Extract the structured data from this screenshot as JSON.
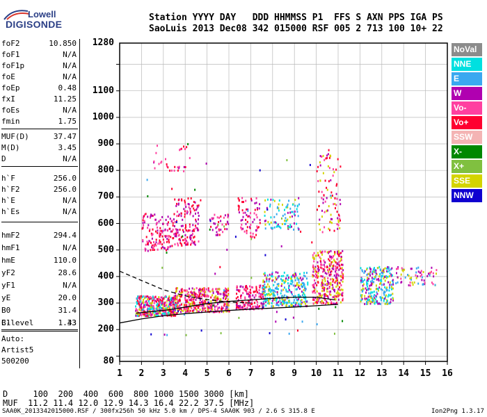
{
  "logo": {
    "line1": "Lowell",
    "line2": "DIGISONDE"
  },
  "header": {
    "labels": "Station YYYY DAY   DDD HHMMSS P1  FFS S AXN PPS IGA PS",
    "values": "SaoLuis 2013 Dec08 342 015000 RSF 005 2 713 100 10+ 22"
  },
  "params": {
    "group1": [
      {
        "k": "foF2",
        "v": "10.850"
      },
      {
        "k": "foF1",
        "v": "N/A"
      },
      {
        "k": "foF1p",
        "v": "N/A"
      },
      {
        "k": "foE",
        "v": "N/A"
      },
      {
        "k": "foEp",
        "v": "0.48"
      },
      {
        "k": "fxI",
        "v": "11.25"
      },
      {
        "k": "foEs",
        "v": "N/A"
      },
      {
        "k": "fmin",
        "v": "1.75"
      }
    ],
    "group2": [
      {
        "k": "MUF(D)",
        "v": "37.47"
      },
      {
        "k": "M(D)",
        "v": "3.45"
      },
      {
        "k": "D",
        "v": "N/A"
      }
    ],
    "group3": [
      {
        "k": "h`F",
        "v": "256.0"
      },
      {
        "k": "h`F2",
        "v": "256.0"
      },
      {
        "k": "h`E",
        "v": "N/A"
      },
      {
        "k": "h`Es",
        "v": "N/A"
      }
    ],
    "group4": [
      {
        "k": "hmF2",
        "v": "294.4"
      },
      {
        "k": "hmF1",
        "v": "N/A"
      },
      {
        "k": "hmE",
        "v": "110.0"
      },
      {
        "k": "yF2",
        "v": "28.6"
      },
      {
        "k": "yF1",
        "v": "N/A"
      },
      {
        "k": "yE",
        "v": "20.0"
      },
      {
        "k": "B0",
        "v": "31.4"
      },
      {
        "k": "B1",
        "v": "1.43"
      }
    ],
    "group5": [
      {
        "k": "C-level",
        "v": "33"
      }
    ],
    "auto_label": "Auto:",
    "auto_name": "Artist5",
    "auto_code": "500200"
  },
  "legend": [
    {
      "label": "NoVal",
      "color": "#8c8c8c"
    },
    {
      "label": "NNE",
      "color": "#00e0e0"
    },
    {
      "label": "E",
      "color": "#3aa8f0"
    },
    {
      "label": "W",
      "color": "#b000b0"
    },
    {
      "label": "Vo-",
      "color": "#ff40a0"
    },
    {
      "label": "Vo+",
      "color": "#ff0030"
    },
    {
      "label": "SSW",
      "color": "#f4b4b4"
    },
    {
      "label": "X-",
      "color": "#008800"
    },
    {
      "label": "X+",
      "color": "#80c040"
    },
    {
      "label": "SSE",
      "color": "#d4d400"
    },
    {
      "label": "NNW",
      "color": "#1000d0"
    }
  ],
  "bottom": {
    "d_line": "D     100  200  400  600  800 1000 1500 3000 [km]",
    "muf_line": "MUF  11.2 11.4 12.0 12.9 14.3 16.4 22.2 37.5 [MHz]",
    "footer_left": "SAA0K_2013342015000.RSF / 300fx256h 50 kHz 5.0 km / DPS-4 SAA0K 903 / 2.6 S 315.8 E",
    "footer_right": "Ion2Png 1.3.17"
  },
  "chart_data": {
    "type": "scatter",
    "xlabel": "",
    "ylabel": "",
    "xlim": [
      1,
      16
    ],
    "ylim": [
      80,
      1280
    ],
    "x_ticks": [
      1,
      2,
      3,
      4,
      5,
      6,
      7,
      8,
      9,
      10,
      11,
      12,
      13,
      14,
      15,
      16
    ],
    "y_ticks": [
      80,
      200,
      300,
      400,
      500,
      600,
      700,
      800,
      900,
      1000,
      1100,
      1280
    ],
    "y_ticks_grid": [
      100,
      200,
      300,
      400,
      500,
      600,
      700,
      800,
      900,
      1000,
      1100,
      1200
    ],
    "grid": true,
    "clusters": [
      {
        "x": [
          1.7,
          3.6
        ],
        "y": [
          255,
          330
        ],
        "colors": [
          "#ff0030",
          "#b000b0",
          "#ff40a0",
          "#d4d400",
          "#00e0e0"
        ],
        "n": 420
      },
      {
        "x": [
          3.5,
          6.0
        ],
        "y": [
          270,
          360
        ],
        "colors": [
          "#ff0030",
          "#b000b0",
          "#ff40a0",
          "#d4d400"
        ],
        "n": 380
      },
      {
        "x": [
          6.3,
          7.6
        ],
        "y": [
          280,
          370
        ],
        "colors": [
          "#ff0030",
          "#b000b0",
          "#ff40a0"
        ],
        "n": 160
      },
      {
        "x": [
          7.5,
          9.6
        ],
        "y": [
          290,
          420
        ],
        "colors": [
          "#3aa8f0",
          "#00e0e0",
          "#d4d400",
          "#b000b0"
        ],
        "n": 320
      },
      {
        "x": [
          9.8,
          11.2
        ],
        "y": [
          300,
          500
        ],
        "colors": [
          "#ff0030",
          "#b000b0",
          "#ff40a0",
          "#d4d400"
        ],
        "n": 340
      },
      {
        "x": [
          12.0,
          13.5
        ],
        "y": [
          300,
          440
        ],
        "colors": [
          "#3aa8f0",
          "#00e0e0",
          "#d4d400",
          "#b000b0"
        ],
        "n": 260
      },
      {
        "x": [
          13.6,
          15.5
        ],
        "y": [
          370,
          440
        ],
        "colors": [
          "#3aa8f0",
          "#b000b0",
          "#ff40a0",
          "#d4d400"
        ],
        "n": 70
      },
      {
        "x": [
          2.0,
          3.4
        ],
        "y": [
          500,
          640
        ],
        "colors": [
          "#ff0030",
          "#b000b0",
          "#ff40a0"
        ],
        "n": 130
      },
      {
        "x": [
          3.4,
          4.6
        ],
        "y": [
          520,
          700
        ],
        "colors": [
          "#ff0030",
          "#b000b0",
          "#ff40a0"
        ],
        "n": 150
      },
      {
        "x": [
          5.1,
          6.0
        ],
        "y": [
          560,
          640
        ],
        "colors": [
          "#ff0030",
          "#b000b0",
          "#ff40a0"
        ],
        "n": 40
      },
      {
        "x": [
          6.4,
          7.4
        ],
        "y": [
          550,
          700
        ],
        "colors": [
          "#ff0030",
          "#ff40a0",
          "#b000b0"
        ],
        "n": 70
      },
      {
        "x": [
          7.6,
          9.2
        ],
        "y": [
          580,
          700
        ],
        "colors": [
          "#3aa8f0",
          "#00e0e0",
          "#b000b0",
          "#d4d400"
        ],
        "n": 90
      },
      {
        "x": [
          10.0,
          11.1
        ],
        "y": [
          570,
          870
        ],
        "colors": [
          "#ff0030",
          "#b000b0",
          "#ff40a0",
          "#d4d400"
        ],
        "n": 90
      },
      {
        "x": [
          2.5,
          4.3
        ],
        "y": [
          800,
          900
        ],
        "colors": [
          "#b000b0",
          "#ff40a0",
          "#ff0030"
        ],
        "n": 30
      },
      {
        "x": [
          2.0,
          11.2
        ],
        "y": [
          180,
          940
        ],
        "colors": [
          "#3aa8f0",
          "#80c040",
          "#008800",
          "#b000b0",
          "#ff0030",
          "#1000d0"
        ],
        "n": 70
      }
    ],
    "curves": [
      {
        "name": "",
        "style": "solid",
        "x": [
          1.0,
          2.0,
          3.0,
          4.0,
          5.0,
          6.0,
          7.0,
          8.0,
          9.0,
          10.0,
          11.0
        ],
        "y": [
          225,
          240,
          252,
          260,
          266,
          272,
          277,
          281,
          285,
          290,
          295
        ]
      },
      {
        "name": "",
        "style": "dashed",
        "x": [
          1.0,
          2.0,
          3.0,
          4.0,
          5.0,
          6.0,
          7.0
        ],
        "y": [
          420,
          385,
          350,
          327,
          313,
          304,
          300
        ]
      },
      {
        "name": "",
        "style": "solid",
        "x": [
          1.75,
          2.5,
          3.3,
          4.0,
          5.0,
          6.0,
          7.0,
          8.0,
          9.0,
          10.0,
          10.85
        ],
        "y": [
          262,
          268,
          275,
          285,
          298,
          306,
          312,
          318,
          322,
          322,
          312
        ]
      }
    ]
  }
}
